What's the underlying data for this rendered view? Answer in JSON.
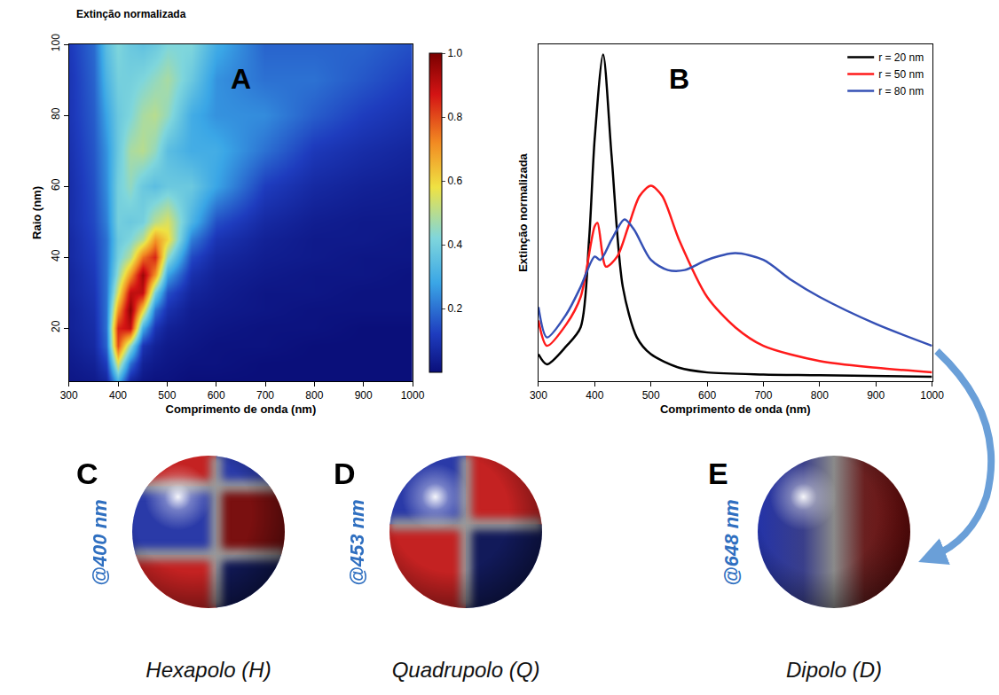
{
  "chart_data": [
    {
      "type": "heatmap",
      "panel": "A",
      "title": "Extinção normalizada",
      "xlabel": "Comprimento de onda (nm)",
      "ylabel": "Raio (nm)",
      "x": [
        300,
        350,
        375,
        400,
        425,
        450,
        475,
        500,
        550,
        600,
        700,
        800,
        900,
        1000
      ],
      "y": [
        5,
        10,
        15,
        20,
        25,
        30,
        35,
        40,
        45,
        50,
        60,
        70,
        80,
        90,
        100
      ],
      "z": [
        [
          0.02,
          0.03,
          0.06,
          0.3,
          0.06,
          0.02,
          0.01,
          0.01,
          0,
          0,
          0,
          0,
          0,
          0
        ],
        [
          0.03,
          0.05,
          0.12,
          0.55,
          0.2,
          0.05,
          0.03,
          0.02,
          0.01,
          0.01,
          0,
          0,
          0,
          0
        ],
        [
          0.04,
          0.07,
          0.18,
          0.8,
          0.45,
          0.1,
          0.05,
          0.03,
          0.02,
          0.01,
          0.01,
          0,
          0,
          0
        ],
        [
          0.05,
          0.08,
          0.2,
          0.85,
          0.9,
          0.3,
          0.1,
          0.05,
          0.03,
          0.02,
          0.01,
          0.01,
          0,
          0
        ],
        [
          0.05,
          0.09,
          0.2,
          0.7,
          0.98,
          0.6,
          0.2,
          0.09,
          0.04,
          0.03,
          0.02,
          0.01,
          0.01,
          0.01
        ],
        [
          0.06,
          0.1,
          0.2,
          0.55,
          0.9,
          0.9,
          0.4,
          0.15,
          0.06,
          0.04,
          0.02,
          0.02,
          0.01,
          0.01
        ],
        [
          0.06,
          0.11,
          0.2,
          0.45,
          0.7,
          0.95,
          0.7,
          0.28,
          0.09,
          0.05,
          0.03,
          0.02,
          0.02,
          0.01
        ],
        [
          0.07,
          0.12,
          0.2,
          0.4,
          0.5,
          0.75,
          0.85,
          0.45,
          0.14,
          0.07,
          0.04,
          0.03,
          0.02,
          0.02
        ],
        [
          0.07,
          0.13,
          0.2,
          0.38,
          0.42,
          0.5,
          0.7,
          0.6,
          0.22,
          0.1,
          0.05,
          0.03,
          0.03,
          0.02
        ],
        [
          0.08,
          0.14,
          0.22,
          0.4,
          0.38,
          0.4,
          0.5,
          0.55,
          0.32,
          0.15,
          0.07,
          0.04,
          0.03,
          0.03
        ],
        [
          0.08,
          0.15,
          0.24,
          0.4,
          0.45,
          0.38,
          0.35,
          0.38,
          0.38,
          0.28,
          0.12,
          0.07,
          0.05,
          0.04
        ],
        [
          0.09,
          0.16,
          0.25,
          0.38,
          0.48,
          0.5,
          0.45,
          0.35,
          0.3,
          0.3,
          0.2,
          0.11,
          0.08,
          0.06
        ],
        [
          0.1,
          0.17,
          0.28,
          0.38,
          0.42,
          0.48,
          0.5,
          0.45,
          0.3,
          0.25,
          0.24,
          0.17,
          0.12,
          0.09
        ],
        [
          0.1,
          0.18,
          0.32,
          0.4,
          0.4,
          0.42,
          0.45,
          0.48,
          0.38,
          0.25,
          0.2,
          0.2,
          0.16,
          0.12
        ],
        [
          0.11,
          0.19,
          0.35,
          0.42,
          0.38,
          0.36,
          0.38,
          0.42,
          0.42,
          0.3,
          0.18,
          0.18,
          0.18,
          0.15
        ]
      ],
      "xlim": [
        300,
        1000
      ],
      "xticks": [
        300,
        400,
        500,
        600,
        700,
        800,
        900,
        1000
      ],
      "ylim": [
        5,
        100
      ],
      "yticks": [
        20,
        40,
        60,
        80,
        100
      ],
      "colorbar_range": [
        0,
        1
      ],
      "colorbar_ticks": [
        0.2,
        0.4,
        0.6,
        0.8,
        {
          "value": 1,
          "label": "1.0"
        }
      ]
    },
    {
      "type": "line",
      "panel": "B",
      "xlabel": "Comprimento de onda (nm)",
      "ylabel": "Extinção normalizada",
      "series": [
        {
          "name": "r = 20 nm",
          "color": "#000000",
          "x": [
            300,
            315,
            350,
            375,
            390,
            400,
            415,
            430,
            450,
            475,
            500,
            550,
            600,
            700,
            800,
            1000
          ],
          "values": [
            0.08,
            0.05,
            0.105,
            0.16,
            0.42,
            0.72,
            0.97,
            0.67,
            0.28,
            0.13,
            0.08,
            0.04,
            0.026,
            0.02,
            0.018,
            0.013
          ]
        },
        {
          "name": "r = 50 nm",
          "color": "#ff1a1a",
          "x": [
            300,
            315,
            350,
            375,
            400,
            405,
            420,
            440,
            460,
            480,
            500,
            520,
            550,
            600,
            650,
            700,
            800,
            900,
            1000
          ],
          "values": [
            0.18,
            0.105,
            0.17,
            0.25,
            0.46,
            0.47,
            0.34,
            0.37,
            0.46,
            0.55,
            0.58,
            0.55,
            0.42,
            0.25,
            0.16,
            0.105,
            0.06,
            0.04,
            0.026
          ]
        },
        {
          "name": "r = 80 nm",
          "color": "#3550b5",
          "x": [
            300,
            315,
            350,
            375,
            400,
            410,
            430,
            453,
            470,
            500,
            530,
            560,
            600,
            650,
            700,
            750,
            800,
            900,
            1000
          ],
          "values": [
            0.22,
            0.13,
            0.2,
            0.28,
            0.37,
            0.36,
            0.42,
            0.48,
            0.45,
            0.36,
            0.33,
            0.33,
            0.36,
            0.38,
            0.36,
            0.3,
            0.25,
            0.17,
            0.105
          ]
        }
      ],
      "xlim": [
        300,
        1000
      ],
      "xticks": [
        300,
        400,
        500,
        600,
        700,
        800,
        900,
        1000
      ],
      "ylim": [
        0,
        1
      ],
      "yticks": [],
      "tick_labels": "x",
      "legend": "top right"
    }
  ],
  "panels": [
    {
      "letter": "C",
      "wavelength": "@400 nm",
      "caption": "Hexapolo (H)"
    },
    {
      "letter": "D",
      "wavelength": "@453 nm",
      "caption": "Quadrupolo (Q)"
    },
    {
      "letter": "E",
      "wavelength": "@648 nm",
      "caption": "Dipolo (D)"
    }
  ]
}
